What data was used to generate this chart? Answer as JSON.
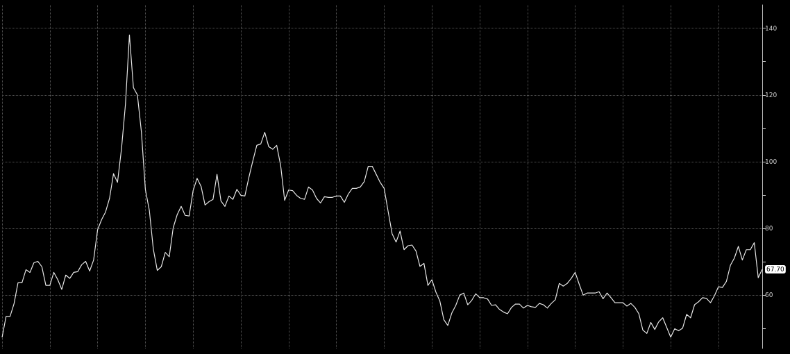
{
  "chart_data": {
    "type": "line",
    "categories": [
      null,
      null,
      null,
      null,
      null,
      null,
      null,
      null,
      null,
      null,
      null,
      null,
      null,
      null,
      null,
      null,
      null,
      null,
      null,
      null,
      null,
      null,
      null,
      null,
      null,
      null,
      null,
      null,
      null,
      null,
      null,
      null,
      null,
      null,
      null,
      null,
      null,
      null,
      null,
      null,
      null,
      null,
      null,
      null,
      null,
      null,
      null,
      null,
      null,
      null,
      null,
      null,
      null,
      null,
      null,
      null,
      null,
      null,
      null,
      null,
      null,
      null,
      null,
      null,
      null,
      null,
      null,
      null,
      null,
      null,
      null,
      null,
      null,
      null,
      null,
      null,
      null,
      null,
      null,
      null,
      null,
      null,
      null,
      null,
      null,
      null,
      null,
      null,
      null,
      null,
      null,
      null,
      null,
      null,
      null,
      null,
      null,
      null,
      null,
      null,
      null,
      null,
      null,
      null,
      null,
      null,
      null,
      null,
      null,
      null,
      null,
      null,
      null,
      null,
      null,
      null,
      null,
      null,
      null,
      null,
      null,
      null,
      null,
      null,
      null,
      null,
      null,
      null,
      null,
      null,
      null,
      null,
      null,
      null,
      null,
      null,
      null,
      null,
      null,
      null,
      null,
      null,
      null,
      null,
      null,
      null,
      null,
      null,
      null,
      null,
      null,
      null,
      null,
      null,
      null,
      null,
      null,
      null,
      null,
      null,
      null,
      null,
      null,
      null,
      null,
      null,
      null,
      null,
      null,
      null,
      null,
      null,
      null,
      null,
      null,
      null,
      null,
      null,
      null,
      null,
      null,
      null,
      null,
      null,
      null,
      null,
      null,
      null,
      null,
      null,
      null,
      null
    ],
    "series": [
      {
        "color": "#e6e6e6",
        "values": [
          47.3,
          53.6,
          53.6,
          57.4,
          63.7,
          63.7,
          67.6,
          66.8,
          69.7,
          70.1,
          68.5,
          62.9,
          62.9,
          66.8,
          64.6,
          61.7,
          66,
          65,
          66.8,
          67,
          69.1,
          70.1,
          67.2,
          70.5,
          79.6,
          82.6,
          84.9,
          89,
          96.4,
          93.8,
          103.8,
          117.2,
          138,
          122.2,
          120,
          109,
          91.7,
          85.4,
          73.8,
          67.4,
          68.5,
          72.8,
          71.5,
          80.2,
          84.1,
          86.6,
          83.9,
          83.7,
          91.3,
          95,
          92.6,
          87,
          88,
          88.7,
          96.2,
          88.2,
          86.6,
          89.7,
          88.7,
          91.7,
          89.9,
          89.7,
          95.2,
          100.2,
          104.9,
          105.3,
          108.8,
          104.5,
          103.7,
          104.9,
          98.8,
          88.4,
          91.5,
          91.3,
          89.9,
          89,
          88.7,
          92.4,
          91.5,
          89,
          87.6,
          89.5,
          89.3,
          89.3,
          89.7,
          89.7,
          87.8,
          90.3,
          92,
          92,
          92.4,
          94,
          98.6,
          98.6,
          96.2,
          93.8,
          92,
          85.1,
          78.4,
          75.9,
          79.2,
          73.6,
          74.8,
          75,
          73.2,
          68.6,
          69.5,
          62.9,
          64.6,
          60.9,
          58.2,
          52.6,
          50.9,
          54.6,
          56.9,
          60,
          60.6,
          57.1,
          58.4,
          60.4,
          59.2,
          59.2,
          58.8,
          56.9,
          57.1,
          55.7,
          54.9,
          54.4,
          56.3,
          57.3,
          57.3,
          56.1,
          56.9,
          56.5,
          56.3,
          57.5,
          57.1,
          56.1,
          57.5,
          58.6,
          63.5,
          62.7,
          63.5,
          65,
          66.8,
          63.3,
          60,
          60.6,
          60.6,
          60.6,
          61,
          58.9,
          60.6,
          59.2,
          57.7,
          57.7,
          57.7,
          56.7,
          57.5,
          56.3,
          54.4,
          49.5,
          48.5,
          51.8,
          49.7,
          52,
          53.2,
          50.3,
          47.4,
          49.9,
          49.3,
          50.1,
          54.2,
          53.2,
          57.1,
          58,
          59.2,
          59,
          57.7,
          59.8,
          62.5,
          62.3,
          64.1,
          68.9,
          71.1,
          74.6,
          70.5,
          73.6,
          73.6,
          75.7,
          65.2,
          67.7
        ],
        "value_labels": [
          null,
          null,
          null,
          null,
          null,
          null,
          null,
          null,
          null,
          null,
          null,
          null,
          null,
          null,
          null,
          null,
          null,
          null,
          null,
          null,
          null,
          null,
          null,
          null,
          null,
          null,
          null,
          null,
          null,
          null,
          null,
          null,
          null,
          null,
          null,
          null,
          null,
          null,
          null,
          null,
          null,
          null,
          null,
          null,
          null,
          null,
          null,
          null,
          null,
          null,
          null,
          null,
          null,
          null,
          null,
          null,
          null,
          null,
          null,
          null,
          null,
          null,
          null,
          null,
          null,
          null,
          null,
          null,
          null,
          null,
          null,
          null,
          null,
          null,
          null,
          null,
          null,
          null,
          null,
          null,
          null,
          null,
          null,
          null,
          null,
          null,
          null,
          null,
          null,
          null,
          null,
          null,
          null,
          null,
          null,
          null,
          null,
          null,
          null,
          null,
          null,
          null,
          null,
          null,
          null,
          null,
          null,
          null,
          null,
          null,
          null,
          null,
          null,
          null,
          null,
          null,
          null,
          null,
          null,
          null,
          null,
          null,
          null,
          null,
          null,
          null,
          null,
          null,
          null,
          null,
          null,
          null,
          null,
          null,
          null,
          null,
          null,
          null,
          null,
          null,
          null,
          null,
          null,
          null,
          null,
          null,
          null,
          null,
          null,
          null,
          null,
          null,
          null,
          null,
          null,
          null,
          null,
          null,
          null,
          null,
          null,
          null,
          null,
          null,
          null,
          null,
          null,
          null,
          null,
          null,
          null,
          null,
          null,
          null,
          null,
          null,
          null,
          null,
          null,
          null,
          null,
          null,
          null,
          null,
          null,
          null,
          null,
          null,
          null,
          null,
          null,
          "67.70"
        ]
      }
    ],
    "ylim": [
      44,
      147
    ],
    "yticks": [
      {
        "value": 50,
        "label": null
      },
      60,
      {
        "value": 70,
        "label": null
      },
      80,
      {
        "value": 90,
        "label": null
      },
      100,
      {
        "value": 110,
        "label": null
      },
      120,
      {
        "value": 130,
        "label": null
      },
      140
    ],
    "grid": true,
    "marker": "none",
    "line_style": "solid"
  }
}
